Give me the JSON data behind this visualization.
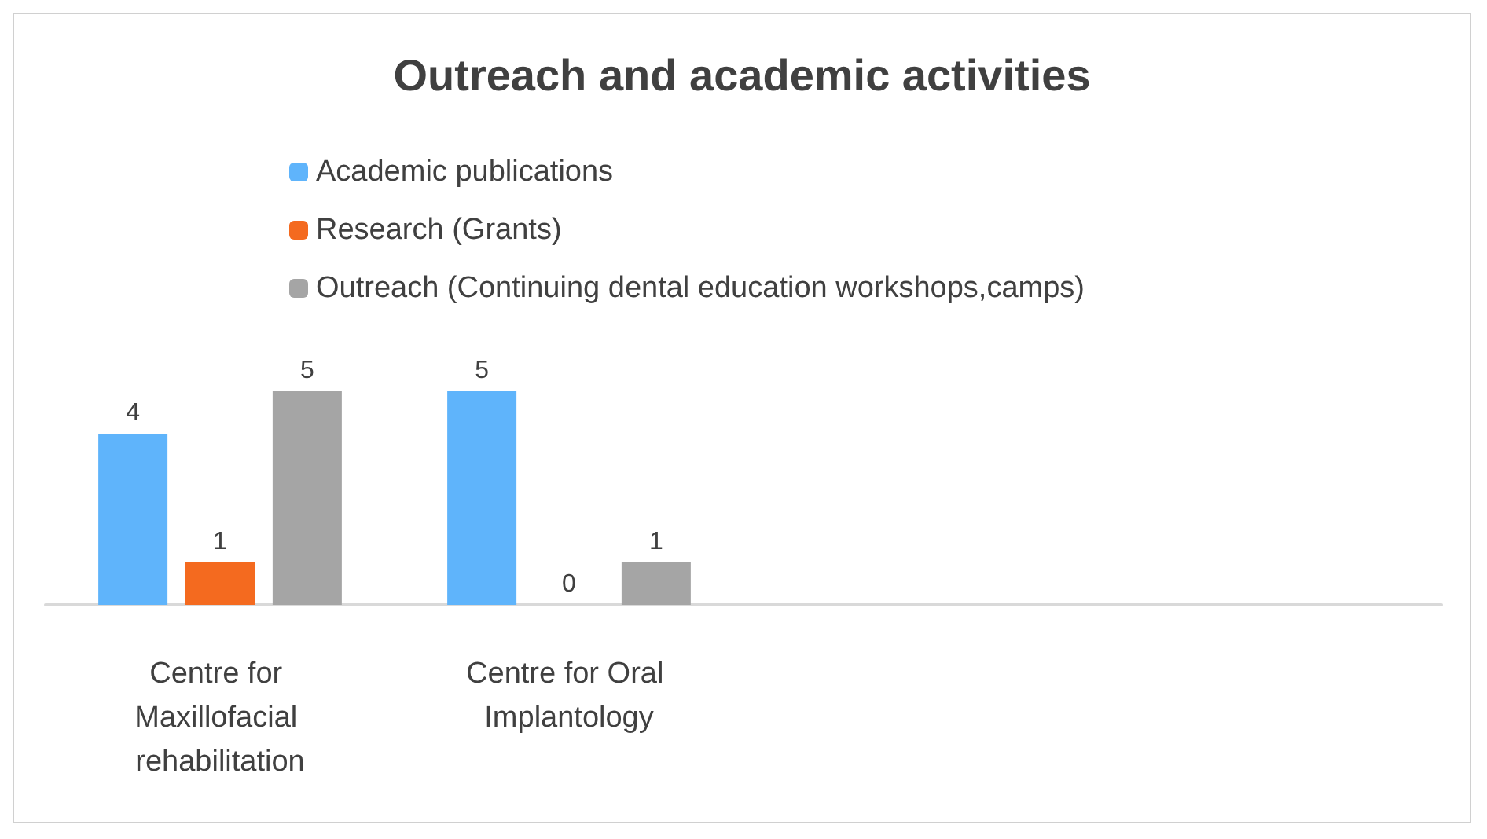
{
  "chart_data": {
    "type": "bar",
    "title": "Outreach and academic activities",
    "categories": [
      "Centre for Maxillofacial rehabilitation",
      "Centre for Oral Implantology",
      null,
      null
    ],
    "series": [
      {
        "name": "Academic publications",
        "color": "#5fb4fb",
        "values": [
          4,
          5,
          null,
          null
        ]
      },
      {
        "name": "Research (Grants)",
        "color": "#f46a1f",
        "values": [
          1,
          0,
          null,
          null
        ]
      },
      {
        "name": "Outreach (Continuing dental education workshops,camps)",
        "color": "#a5a5a5",
        "values": [
          5,
          1,
          null,
          null
        ]
      }
    ],
    "data_labels": true,
    "legend": "top"
  }
}
